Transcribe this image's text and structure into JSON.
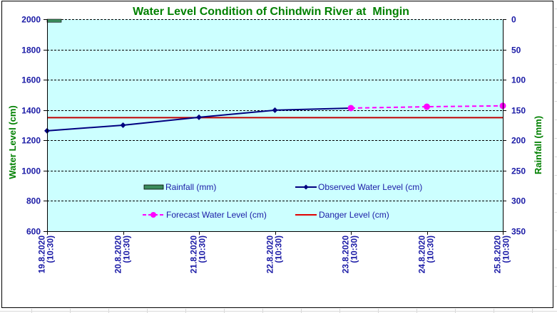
{
  "chart_data": {
    "type": "line",
    "title": "Water Level Condition of Chindwin River at  Mingin",
    "ylabel": "Water Level (cm)",
    "y2label": "Rainfall (mm)",
    "xlabel": "",
    "ylim": [
      600,
      2000
    ],
    "y_ticks": [
      600,
      800,
      1000,
      1200,
      1400,
      1600,
      1800,
      2000
    ],
    "y2lim": [
      0,
      350
    ],
    "y2_inverted": true,
    "y2_ticks": [
      0,
      50,
      100,
      150,
      200,
      250,
      300,
      350
    ],
    "grid": true,
    "categories": [
      [
        "19.8.2020",
        "(10:30)"
      ],
      [
        "20.8.2020",
        "(10:30)"
      ],
      [
        "21.8.2020",
        "(10:30)"
      ],
      [
        "22.8.2020",
        "(10:30)"
      ],
      [
        "23.8.2020",
        "(10:30)"
      ],
      [
        "24.8.2020",
        "(10:30)"
      ],
      [
        "25.8.2020",
        "(10:30)"
      ]
    ],
    "series": [
      {
        "name": "Rainfall (mm)",
        "kind": "bar",
        "axis": "y2",
        "color": "#3a8c5c",
        "values": [
          5,
          null,
          null,
          null,
          null,
          null,
          null
        ]
      },
      {
        "name": "Observed Water Level (cm)",
        "kind": "line",
        "marker": "diamond",
        "color": "#000080",
        "values": [
          1263,
          1300,
          1352,
          1399,
          1413,
          null,
          null
        ]
      },
      {
        "name": "Forecast Water Level (cm)",
        "kind": "dashed-line",
        "marker": "circle",
        "color": "#ff00ff",
        "values": [
          null,
          null,
          null,
          null,
          1413,
          1422,
          1428
        ]
      },
      {
        "name": "Danger Level (cm)",
        "kind": "hline",
        "color": "#c00000",
        "value": 1350
      }
    ],
    "legend": {
      "placement": "inside-bottom-center",
      "entries": [
        "Rainfall (mm)",
        "Observed Water Level (cm)",
        "Forecast Water Level (cm)",
        "Danger Level (cm)"
      ]
    }
  },
  "colors": {
    "plot_background": "#ccffff",
    "title": "#008000",
    "ticks": "#1a1aa6"
  }
}
